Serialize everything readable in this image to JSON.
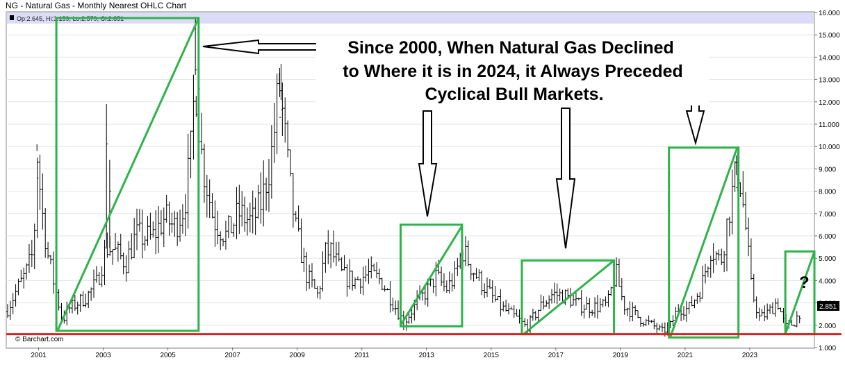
{
  "title": "NG - Natural Gas - Monthly Nearest OHLC Chart",
  "legend_text": "Op:2.645, Hi:3.159, Lo:2.579, Cl:2.851",
  "watermark": "© Barchart.com",
  "colors": {
    "bars": "#000000",
    "boxes": "#2db34a",
    "support_line": "#e02020",
    "legend_band": "#dcdcf8",
    "last_price_bg": "#000000"
  },
  "annotation": {
    "lines": [
      "Since 2000, When Natural Gas Declined",
      "to Where it is in 2024, it Always Preceded",
      "Cyclical Bull Markets."
    ],
    "question_mark": "?"
  },
  "chart_data": {
    "type": "ohlc",
    "title": "NG - Natural Gas - Monthly Nearest OHLC Chart",
    "xlabel": "",
    "ylabel": "",
    "x_range": [
      2000.0,
      2025.0
    ],
    "ylim": [
      1.0,
      16.0
    ],
    "x_ticks": [
      "2001",
      "2003",
      "2005",
      "2007",
      "2009",
      "2011",
      "2013",
      "2015",
      "2017",
      "2019",
      "2021",
      "2023"
    ],
    "y_ticks": [
      "1.000",
      "2.000",
      "3.000",
      "4.000",
      "5.000",
      "6.000",
      "7.000",
      "8.000",
      "9.000",
      "10.000",
      "11.000",
      "12.000",
      "13.000",
      "14.000",
      "15.000",
      "16.000"
    ],
    "last_price": "2.851",
    "price_anchors": [
      [
        2000.0,
        2.6
      ],
      [
        2000.3,
        3.5
      ],
      [
        2000.6,
        4.3
      ],
      [
        2000.85,
        5.3
      ],
      [
        2000.95,
        9.8
      ],
      [
        2001.1,
        7.2
      ],
      [
        2001.3,
        5.0
      ],
      [
        2001.55,
        3.4
      ],
      [
        2001.75,
        2.2
      ],
      [
        2001.9,
        2.7
      ],
      [
        2002.2,
        3.0
      ],
      [
        2002.5,
        3.3
      ],
      [
        2002.8,
        3.9
      ],
      [
        2003.1,
        5.5
      ],
      [
        2003.3,
        5.4
      ],
      [
        2003.7,
        4.8
      ],
      [
        2004.0,
        6.0
      ],
      [
        2004.5,
        5.9
      ],
      [
        2004.9,
        6.8
      ],
      [
        2005.2,
        6.4
      ],
      [
        2005.5,
        7.3
      ],
      [
        2005.7,
        9.5
      ],
      [
        2005.85,
        13.2
      ],
      [
        2006.05,
        9.5
      ],
      [
        2006.4,
        6.8
      ],
      [
        2006.8,
        6.0
      ],
      [
        2007.2,
        7.0
      ],
      [
        2007.6,
        6.6
      ],
      [
        2007.9,
        7.5
      ],
      [
        2008.2,
        9.6
      ],
      [
        2008.45,
        12.8
      ],
      [
        2008.75,
        8.5
      ],
      [
        2008.95,
        6.3
      ],
      [
        2009.3,
        4.2
      ],
      [
        2009.65,
        3.3
      ],
      [
        2009.85,
        5.2
      ],
      [
        2010.05,
        5.3
      ],
      [
        2010.4,
        4.2
      ],
      [
        2010.8,
        4.0
      ],
      [
        2011.2,
        4.3
      ],
      [
        2011.6,
        4.0
      ],
      [
        2011.9,
        3.2
      ],
      [
        2012.3,
        2.1
      ],
      [
        2012.7,
        3.0
      ],
      [
        2013.0,
        3.5
      ],
      [
        2013.3,
        4.2
      ],
      [
        2013.6,
        3.6
      ],
      [
        2013.9,
        4.2
      ],
      [
        2014.1,
        5.4
      ],
      [
        2014.5,
        4.3
      ],
      [
        2014.9,
        3.5
      ],
      [
        2015.3,
        2.8
      ],
      [
        2015.8,
        2.3
      ],
      [
        2016.1,
        1.9
      ],
      [
        2016.5,
        2.8
      ],
      [
        2016.9,
        3.4
      ],
      [
        2017.3,
        3.3
      ],
      [
        2017.7,
        2.9
      ],
      [
        2018.1,
        2.8
      ],
      [
        2018.6,
        2.9
      ],
      [
        2018.85,
        4.4
      ],
      [
        2019.1,
        2.9
      ],
      [
        2019.6,
        2.3
      ],
      [
        2020.1,
        1.9
      ],
      [
        2020.3,
        1.7
      ],
      [
        2020.55,
        2.0
      ],
      [
        2020.8,
        2.8
      ],
      [
        2021.1,
        2.7
      ],
      [
        2021.5,
        3.7
      ],
      [
        2021.8,
        5.5
      ],
      [
        2022.1,
        4.8
      ],
      [
        2022.4,
        7.5
      ],
      [
        2022.65,
        9.2
      ],
      [
        2022.9,
        6.0
      ],
      [
        2023.05,
        3.6
      ],
      [
        2023.3,
        2.3
      ],
      [
        2023.6,
        2.6
      ],
      [
        2023.85,
        3.1
      ],
      [
        2024.1,
        1.9
      ],
      [
        2024.35,
        2.1
      ],
      [
        2024.55,
        2.6
      ],
      [
        2024.62,
        2.85
      ]
    ],
    "spikes": [
      {
        "x": 2000.95,
        "high": 10.1
      },
      {
        "x": 2003.1,
        "high": 11.9
      },
      {
        "x": 2003.2,
        "high": 9.4
      },
      {
        "x": 2005.85,
        "high": 15.8
      },
      {
        "x": 2005.95,
        "high": 14.8
      },
      {
        "x": 2008.5,
        "high": 13.7
      },
      {
        "x": 2008.45,
        "high": 13.3
      },
      {
        "x": 2022.65,
        "high": 10.0
      },
      {
        "x": 2022.58,
        "high": 9.6
      },
      {
        "x": 2014.1,
        "high": 6.1
      }
    ],
    "boxes": [
      {
        "x1": 2001.55,
        "y1": 1.75,
        "x2": 2005.95,
        "y2": 15.75,
        "diag": [
          2001.6,
          1.8,
          2005.95,
          15.75
        ]
      },
      {
        "x1": 2012.2,
        "y1": 1.95,
        "x2": 2014.1,
        "y2": 6.5,
        "diag": [
          2012.2,
          2.0,
          2014.1,
          6.45
        ]
      },
      {
        "x1": 2015.95,
        "y1": 1.6,
        "x2": 2018.8,
        "y2": 4.9,
        "diag": [
          2016.0,
          1.6,
          2018.8,
          4.9
        ]
      },
      {
        "x1": 2020.5,
        "y1": 1.45,
        "x2": 2022.65,
        "y2": 9.95,
        "diag": [
          2020.55,
          1.5,
          2022.6,
          9.9
        ]
      },
      {
        "x1": 2024.1,
        "y1": 1.6,
        "x2": 2025.0,
        "y2": 5.3,
        "diag": [
          2024.1,
          1.6,
          2025.0,
          5.3
        ]
      }
    ],
    "support_level": 1.6
  }
}
